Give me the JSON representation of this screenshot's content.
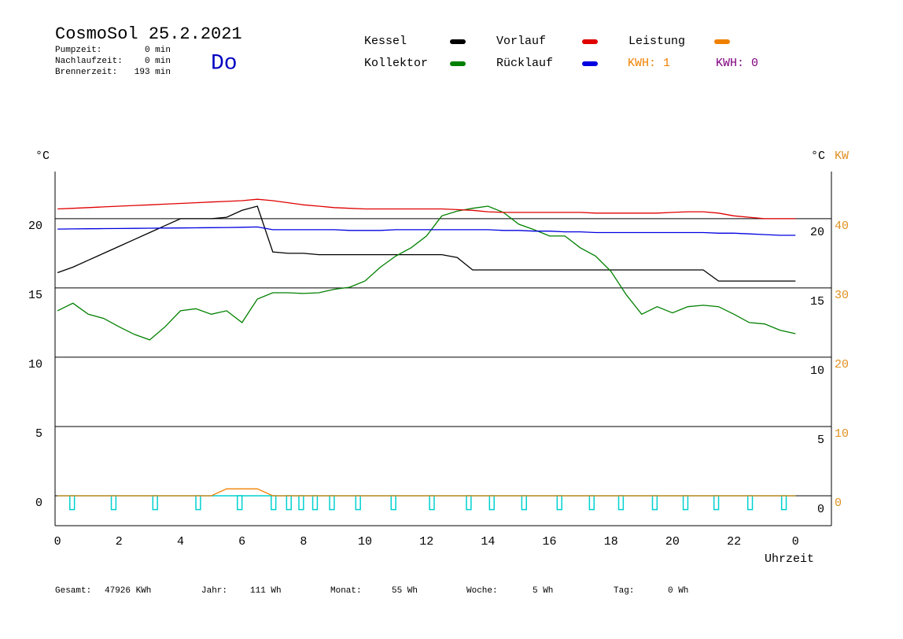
{
  "chart_data": {
    "type": "line",
    "title": "CosmoSol 25.2.2021",
    "info": [
      {
        "label": "Pumpzeit:",
        "value": "0 min"
      },
      {
        "label": "Nachlaufzeit:",
        "value": "0 min"
      },
      {
        "label": "Brennerzeit:",
        "value": "193 min"
      }
    ],
    "weekday": "Do",
    "kwh_labels": [
      {
        "text": "KWH: 1",
        "color": "#f08000"
      },
      {
        "text": "KWH: 0",
        "color": "#800080"
      }
    ],
    "y_unit": "°C",
    "y2_unit": "KW",
    "xlabel": "Uhrzeit",
    "grid": true,
    "x": [
      0,
      0.5,
      1,
      1.5,
      2,
      2.5,
      3,
      3.5,
      4,
      4.5,
      5,
      5.5,
      6,
      6.5,
      7,
      7.5,
      8,
      8.5,
      9,
      9.5,
      10,
      10.5,
      11,
      11.5,
      12,
      12.5,
      13,
      13.5,
      14,
      14.5,
      15,
      15.5,
      16,
      16.5,
      17,
      17.5,
      18,
      18.5,
      19,
      19.5,
      20,
      20.5,
      21,
      21.5,
      22,
      22.5,
      23,
      23.5,
      24
    ],
    "series": [
      {
        "name": "Kessel",
        "color": "#000000",
        "values": [
          16.1,
          16.5,
          17.0,
          17.5,
          18.0,
          18.5,
          19.0,
          19.5,
          20.0,
          20.0,
          20.0,
          20.1,
          20.6,
          20.9,
          17.6,
          17.5,
          17.5,
          17.4,
          17.4,
          17.4,
          17.4,
          17.4,
          17.4,
          17.4,
          17.4,
          17.4,
          17.2,
          16.3,
          16.3,
          16.3,
          16.3,
          16.3,
          16.3,
          16.3,
          16.3,
          16.3,
          16.3,
          16.3,
          16.3,
          16.3,
          16.3,
          16.3,
          16.3,
          15.5,
          15.5,
          15.5,
          15.5,
          15.5,
          15.5
        ]
      },
      {
        "name": "Kollektor",
        "color": "#008000",
        "values": [
          13.35,
          13.9,
          13.1,
          12.8,
          12.2,
          11.65,
          11.25,
          12.2,
          13.35,
          13.5,
          13.1,
          13.35,
          12.5,
          14.2,
          14.65,
          14.65,
          14.6,
          14.65,
          14.9,
          15.05,
          15.5,
          16.5,
          17.3,
          17.9,
          18.75,
          20.2,
          20.55,
          20.75,
          20.9,
          20.45,
          19.6,
          19.2,
          18.75,
          18.75,
          17.9,
          17.3,
          16.2,
          14.5,
          13.1,
          13.65,
          13.2,
          13.65,
          13.75,
          13.65,
          13.1,
          12.5,
          12.4,
          11.95,
          11.7
        ]
      },
      {
        "name": "Vorlauf",
        "color": "#e00000",
        "values": [
          20.7,
          20.75,
          20.8,
          20.85,
          20.9,
          20.95,
          21.0,
          21.05,
          21.1,
          21.15,
          21.2,
          21.25,
          21.3,
          21.4,
          21.3,
          21.15,
          21.0,
          20.9,
          20.8,
          20.75,
          20.7,
          20.7,
          20.7,
          20.7,
          20.7,
          20.7,
          20.65,
          20.6,
          20.5,
          20.45,
          20.45,
          20.45,
          20.45,
          20.45,
          20.45,
          20.4,
          20.4,
          20.4,
          20.4,
          20.4,
          20.45,
          20.5,
          20.5,
          20.4,
          20.2,
          20.1,
          20.0,
          20.0,
          20.0
        ]
      },
      {
        "name": "Rücklauf",
        "color": "#0000e0",
        "values": [
          19.25,
          19.26,
          19.27,
          19.28,
          19.29,
          19.3,
          19.31,
          19.32,
          19.33,
          19.34,
          19.35,
          19.36,
          19.38,
          19.4,
          19.2,
          19.2,
          19.2,
          19.2,
          19.2,
          19.15,
          19.15,
          19.15,
          19.2,
          19.2,
          19.2,
          19.2,
          19.2,
          19.2,
          19.2,
          19.15,
          19.15,
          19.1,
          19.1,
          19.05,
          19.05,
          19.0,
          19.0,
          19.0,
          19.0,
          19.0,
          19.0,
          19.0,
          19.0,
          18.95,
          18.95,
          18.9,
          18.85,
          18.8,
          18.8
        ]
      },
      {
        "name": "Leistung",
        "color": "#f08000",
        "axis": "y2",
        "values": [
          0,
          0,
          0,
          0,
          0,
          0,
          0,
          0,
          0,
          0,
          0,
          1,
          1,
          1,
          0,
          0,
          0,
          0,
          0,
          0,
          0,
          0,
          0,
          0,
          0,
          0,
          0,
          0,
          0,
          0,
          0,
          0,
          0,
          0,
          0,
          0,
          0,
          0,
          0,
          0,
          0,
          0,
          0,
          0,
          0,
          0,
          0,
          0,
          0
        ]
      }
    ],
    "pulses": {
      "color": "#00d0d0",
      "high": 0,
      "low": -1,
      "intervals": [
        [
          0.4,
          0.55
        ],
        [
          1.75,
          1.9
        ],
        [
          3.1,
          3.25
        ],
        [
          4.5,
          4.65
        ],
        [
          5.85,
          6.0
        ],
        [
          6.95,
          7.1
        ],
        [
          7.45,
          7.6
        ],
        [
          7.85,
          8.0
        ],
        [
          8.3,
          8.45
        ],
        [
          8.85,
          9.0
        ],
        [
          9.7,
          9.85
        ],
        [
          10.85,
          11.0
        ],
        [
          12.1,
          12.25
        ],
        [
          13.3,
          13.45
        ],
        [
          14.05,
          14.2
        ],
        [
          15.1,
          15.25
        ],
        [
          16.25,
          16.4
        ],
        [
          17.3,
          17.45
        ],
        [
          18.25,
          18.4
        ],
        [
          19.35,
          19.5
        ],
        [
          20.35,
          20.5
        ],
        [
          21.35,
          21.5
        ],
        [
          22.45,
          22.6
        ],
        [
          23.55,
          23.7
        ]
      ]
    },
    "xlim": [
      -0.08,
      25.17
    ],
    "xticks": [
      0,
      2,
      4,
      6,
      8,
      10,
      12,
      14,
      16,
      18,
      20,
      22,
      {
        "value": 24,
        "label": "0"
      }
    ],
    "ylim": [
      -2.16,
      23.4
    ],
    "yticks": [
      0,
      5,
      10,
      15,
      20
    ],
    "y2lim": [
      -4.32,
      46.8
    ],
    "y2ticks": [
      0,
      10,
      20,
      30,
      40
    ],
    "y2_color": "#e09020",
    "footer": [
      {
        "label": "Gesamt:",
        "value": "47926 KWh"
      },
      {
        "label": "Jahr:",
        "value": "111 Wh"
      },
      {
        "label": "Monat:",
        "value": "55 Wh"
      },
      {
        "label": "Woche:",
        "value": "5 Wh"
      },
      {
        "label": "Tag:",
        "value": "0 Wh"
      }
    ]
  }
}
